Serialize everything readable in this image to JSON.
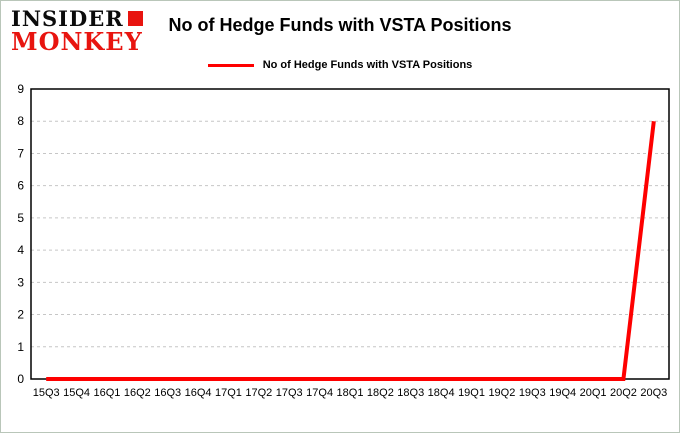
{
  "logo": {
    "line1": "INSIDER",
    "line2": "MONKEY"
  },
  "title": "No of Hedge Funds with VSTA Positions",
  "legend": {
    "label": "No of Hedge Funds with VSTA Positions",
    "color": "#fe0000"
  },
  "chart_data": {
    "type": "line",
    "title": "No of Hedge Funds with VSTA Positions",
    "categories": [
      "15Q3",
      "15Q4",
      "16Q1",
      "16Q2",
      "16Q3",
      "16Q4",
      "17Q1",
      "17Q2",
      "17Q3",
      "17Q4",
      "18Q1",
      "18Q2",
      "18Q3",
      "18Q4",
      "19Q1",
      "19Q2",
      "19Q3",
      "19Q4",
      "20Q1",
      "20Q2",
      "20Q3"
    ],
    "series": [
      {
        "name": "No of Hedge Funds with VSTA Positions",
        "color": "#fe0000",
        "values": [
          0,
          0,
          0,
          0,
          0,
          0,
          0,
          0,
          0,
          0,
          0,
          0,
          0,
          0,
          0,
          0,
          0,
          0,
          0,
          0,
          8
        ]
      }
    ],
    "xlabel": "",
    "ylabel": "",
    "ylim": [
      0,
      9
    ],
    "ytick_step": 1,
    "grid": true,
    "gridline_color": "#c6c6c6",
    "axis_color": "#000000",
    "legend_position": "top"
  }
}
